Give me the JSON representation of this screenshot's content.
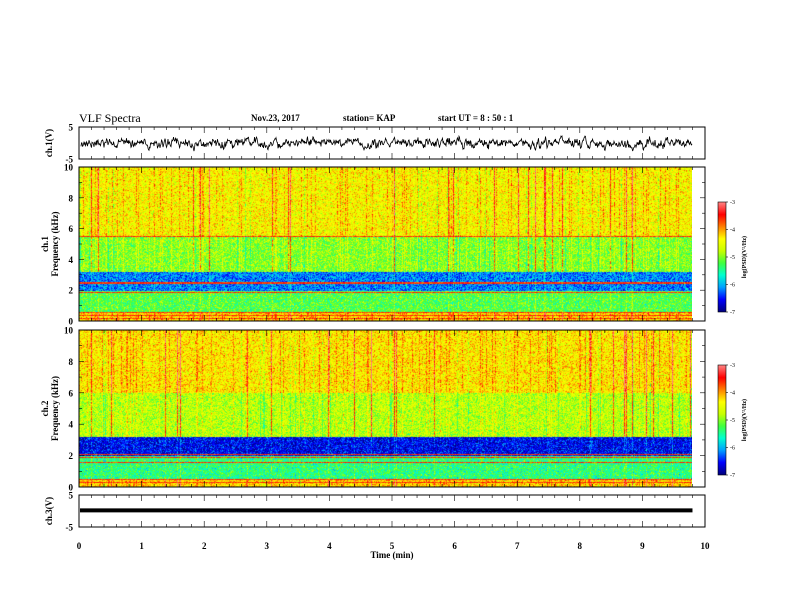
{
  "header": {
    "title": "VLF Spectra",
    "date": "Nov.23, 2017",
    "station": "station= KAP",
    "start": "start  UT =   8  : 50 : 1"
  },
  "colors": {
    "trace": "#000000",
    "colormap": [
      "#000080",
      "#0000ff",
      "#00a0ff",
      "#00ffd0",
      "#40ff40",
      "#c8ff00",
      "#ffff00",
      "#ff8000",
      "#ff0000",
      "#ff8080",
      "#ffffff"
    ]
  },
  "chart_data": [
    {
      "type": "line",
      "name": "ch1-waveform",
      "ylabel": "ch.1(V)",
      "ylim": [
        -5,
        5
      ],
      "yticks": [
        "5",
        "-5"
      ],
      "xlim": [
        0,
        10
      ],
      "amplitude_range": [
        -1.5,
        1.5
      ]
    },
    {
      "type": "heatmap",
      "name": "ch1-spectrogram",
      "ylabel": "ch.1\nFrequency (kHz)",
      "ylim": [
        0,
        10
      ],
      "yticks": [
        "0",
        "2",
        "4",
        "6",
        "8",
        "10"
      ],
      "xlim": [
        0,
        10
      ],
      "colorbar": {
        "label": "log(PSD)(V²/Hz)",
        "range": [
          -7,
          -3
        ],
        "ticks": [
          "-3",
          "-4",
          "-5",
          "-6",
          "-7"
        ]
      },
      "bands": [
        {
          "from": 0.0,
          "to": 0.6,
          "level": -4.2
        },
        {
          "from": 0.6,
          "to": 2.0,
          "level": -5.2
        },
        {
          "from": 2.0,
          "to": 3.2,
          "level": -6.2
        },
        {
          "from": 3.2,
          "to": 5.5,
          "level": -5.0
        },
        {
          "from": 5.5,
          "to": 10.0,
          "level": -4.4
        }
      ],
      "lines_khz": [
        0.2,
        0.4,
        0.6,
        1.9,
        2.5,
        5.5
      ]
    },
    {
      "type": "heatmap",
      "name": "ch2-spectrogram",
      "ylabel": "ch.2\nFrequency (kHz)",
      "ylim": [
        0,
        10
      ],
      "yticks": [
        "0",
        "2",
        "4",
        "6",
        "8",
        "10"
      ],
      "xlim": [
        0,
        10
      ],
      "colorbar": {
        "label": "log(PSD)(V²/Hz)",
        "range": [
          -7,
          -3
        ],
        "ticks": [
          "-3",
          "-4",
          "-5",
          "-6",
          "-7"
        ]
      },
      "bands": [
        {
          "from": 0.0,
          "to": 0.5,
          "level": -4.2
        },
        {
          "from": 0.5,
          "to": 2.0,
          "level": -5.4
        },
        {
          "from": 2.0,
          "to": 3.2,
          "level": -6.6
        },
        {
          "from": 3.2,
          "to": 6.0,
          "level": -4.8
        },
        {
          "from": 6.0,
          "to": 10.0,
          "level": -4.3
        }
      ],
      "lines_khz": [
        0.3,
        0.5,
        1.6,
        1.9,
        2.1
      ]
    },
    {
      "type": "line",
      "name": "ch3-trace",
      "ylabel": "ch.3(V)",
      "ylim": [
        -5,
        5
      ],
      "yticks": [
        "5",
        "-5"
      ],
      "xlim": [
        0,
        10
      ],
      "constant_value": 0.2
    }
  ],
  "x_axis": {
    "label": "Time (min)",
    "ticks": [
      "0",
      "1",
      "2",
      "3",
      "4",
      "5",
      "6",
      "7",
      "8",
      "9",
      "10"
    ],
    "data_end": 9.8
  }
}
